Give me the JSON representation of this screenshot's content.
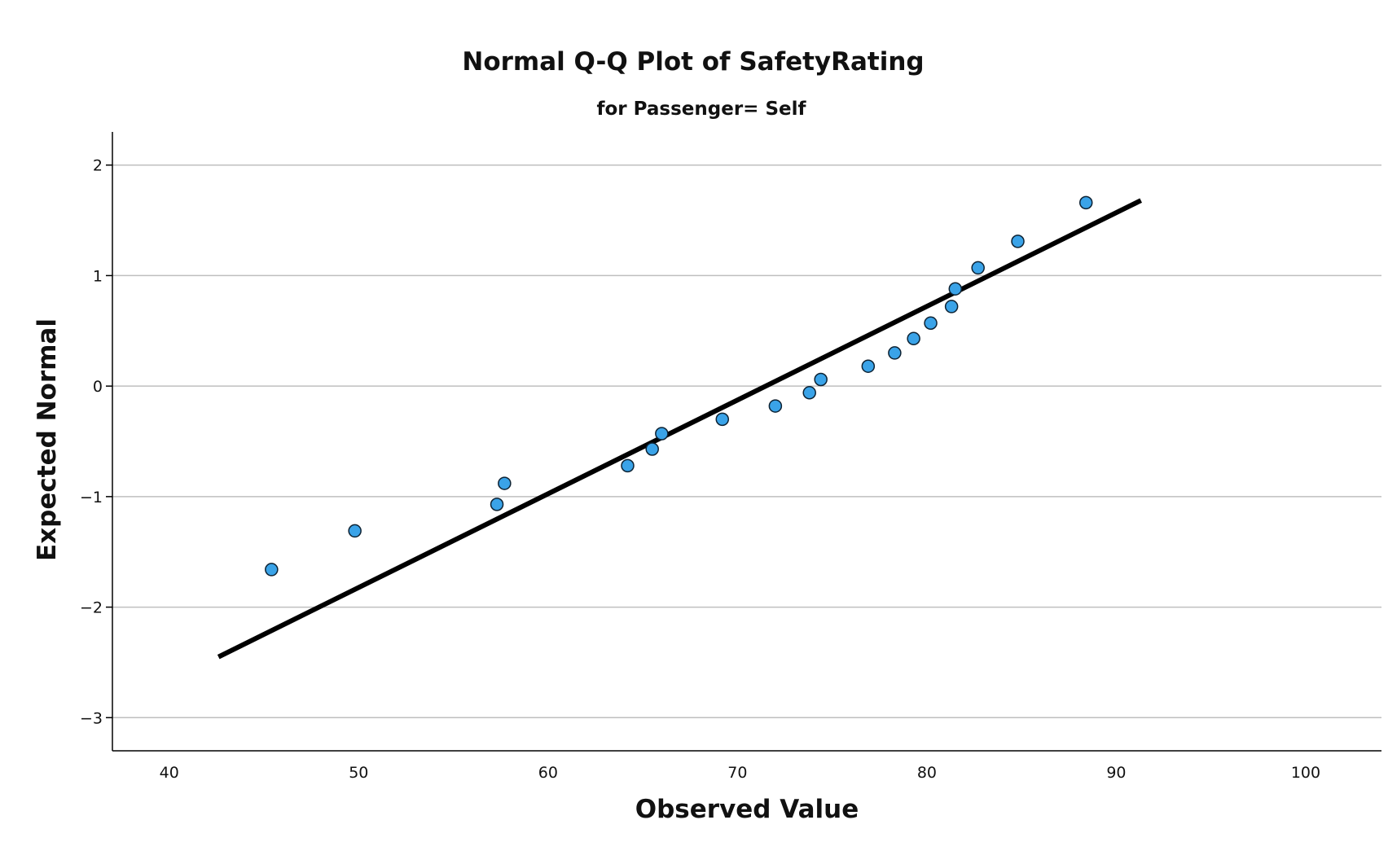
{
  "chart_data": {
    "type": "scatter",
    "title": "Normal Q-Q Plot of SafetyRating",
    "subtitle": "for Passenger= Self",
    "xlabel": "Observed Value",
    "ylabel": "Expected Normal",
    "xlim": [
      37,
      104
    ],
    "ylim": [
      -3.3,
      2.3
    ],
    "x_ticks": [
      40,
      50,
      60,
      70,
      80,
      90,
      100
    ],
    "y_ticks": [
      2,
      1,
      0,
      -1,
      -2,
      -3
    ],
    "grid": "horizontal",
    "colors": {
      "points": "#3aa3e8",
      "point_edge": "#0d2233",
      "line": "#000000",
      "grid": "#bfbfbf",
      "axis": "#000000"
    },
    "points": [
      {
        "x": 45.4,
        "y": -1.66
      },
      {
        "x": 49.8,
        "y": -1.31
      },
      {
        "x": 57.3,
        "y": -1.07
      },
      {
        "x": 57.7,
        "y": -0.88
      },
      {
        "x": 64.2,
        "y": -0.72
      },
      {
        "x": 65.5,
        "y": -0.57
      },
      {
        "x": 66.0,
        "y": -0.43
      },
      {
        "x": 69.2,
        "y": -0.3
      },
      {
        "x": 72.0,
        "y": -0.18
      },
      {
        "x": 73.8,
        "y": -0.06
      },
      {
        "x": 74.4,
        "y": 0.06
      },
      {
        "x": 76.9,
        "y": 0.18
      },
      {
        "x": 78.3,
        "y": 0.3
      },
      {
        "x": 79.3,
        "y": 0.43
      },
      {
        "x": 80.2,
        "y": 0.57
      },
      {
        "x": 81.3,
        "y": 0.72
      },
      {
        "x": 81.5,
        "y": 0.88
      },
      {
        "x": 82.7,
        "y": 1.07
      },
      {
        "x": 84.8,
        "y": 1.31
      },
      {
        "x": 88.4,
        "y": 1.66
      }
    ],
    "reference_line": {
      "x": [
        42.6,
        91.3
      ],
      "y": [
        -2.45,
        1.68
      ]
    }
  }
}
